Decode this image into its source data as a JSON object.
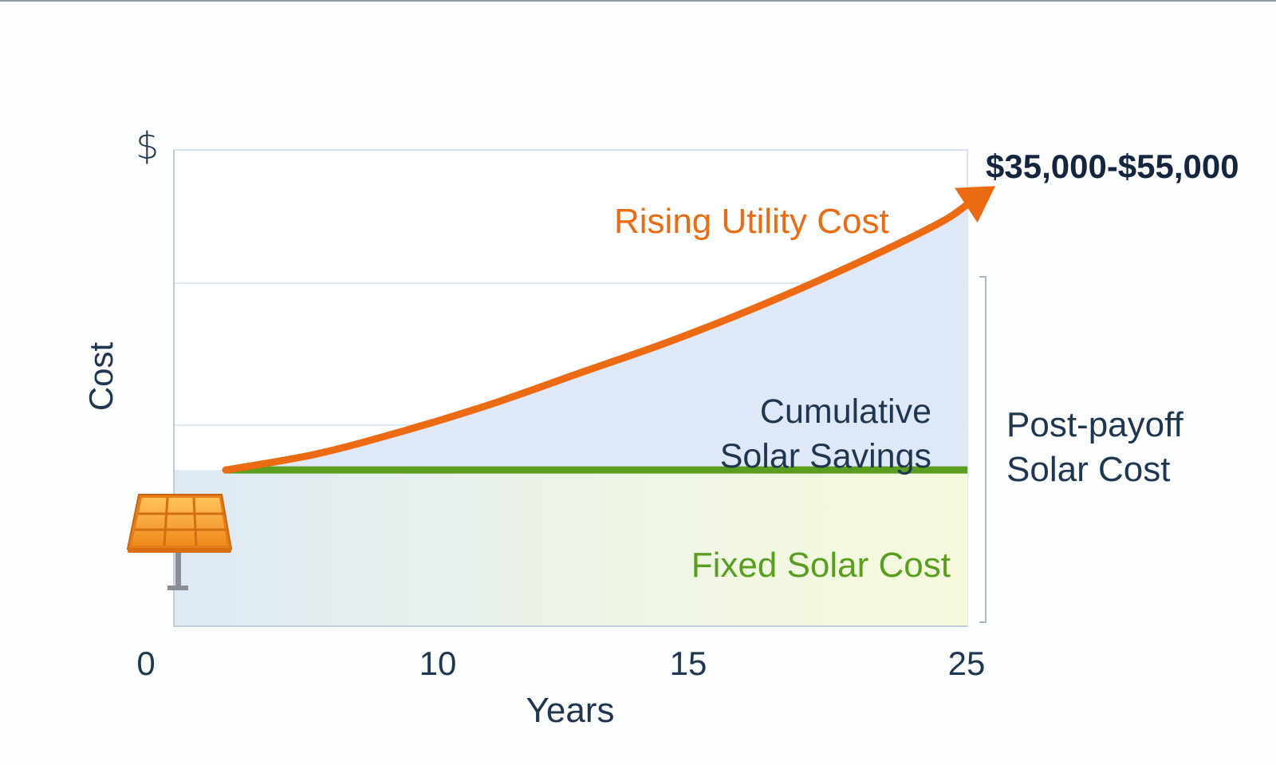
{
  "chart_data": {
    "type": "area",
    "ylabel": "Cost",
    "y_unit_label": "$",
    "xlabel": "Years",
    "x_ticks": [
      "0",
      "10",
      "15",
      "25"
    ],
    "xlim": [
      0,
      25
    ],
    "grid": true,
    "series": [
      {
        "name": "Rising Utility Cost",
        "color": "#ec6b12",
        "x": [
          0,
          3,
          6,
          9,
          12,
          15,
          18,
          21,
          24,
          25
        ],
        "y": [
          0.4,
          0.44,
          0.5,
          0.57,
          0.65,
          0.73,
          0.82,
          0.92,
          1.03,
          1.08
        ]
      },
      {
        "name": "Fixed Solar Cost",
        "color": "#5a9e1f",
        "x": [
          0,
          25
        ],
        "y": [
          0.4,
          0.4
        ]
      }
    ],
    "annotations": {
      "range": "$35,000-$55,000",
      "rising": "Rising Utility Cost",
      "savings_line1": "Cumulative",
      "savings_line2": "Solar Savings",
      "fixed": "Fixed Solar Cost",
      "post_line1": "Post-payoff",
      "post_line2": "Solar Cost"
    },
    "icons": [
      "solar-panel-icon"
    ]
  }
}
